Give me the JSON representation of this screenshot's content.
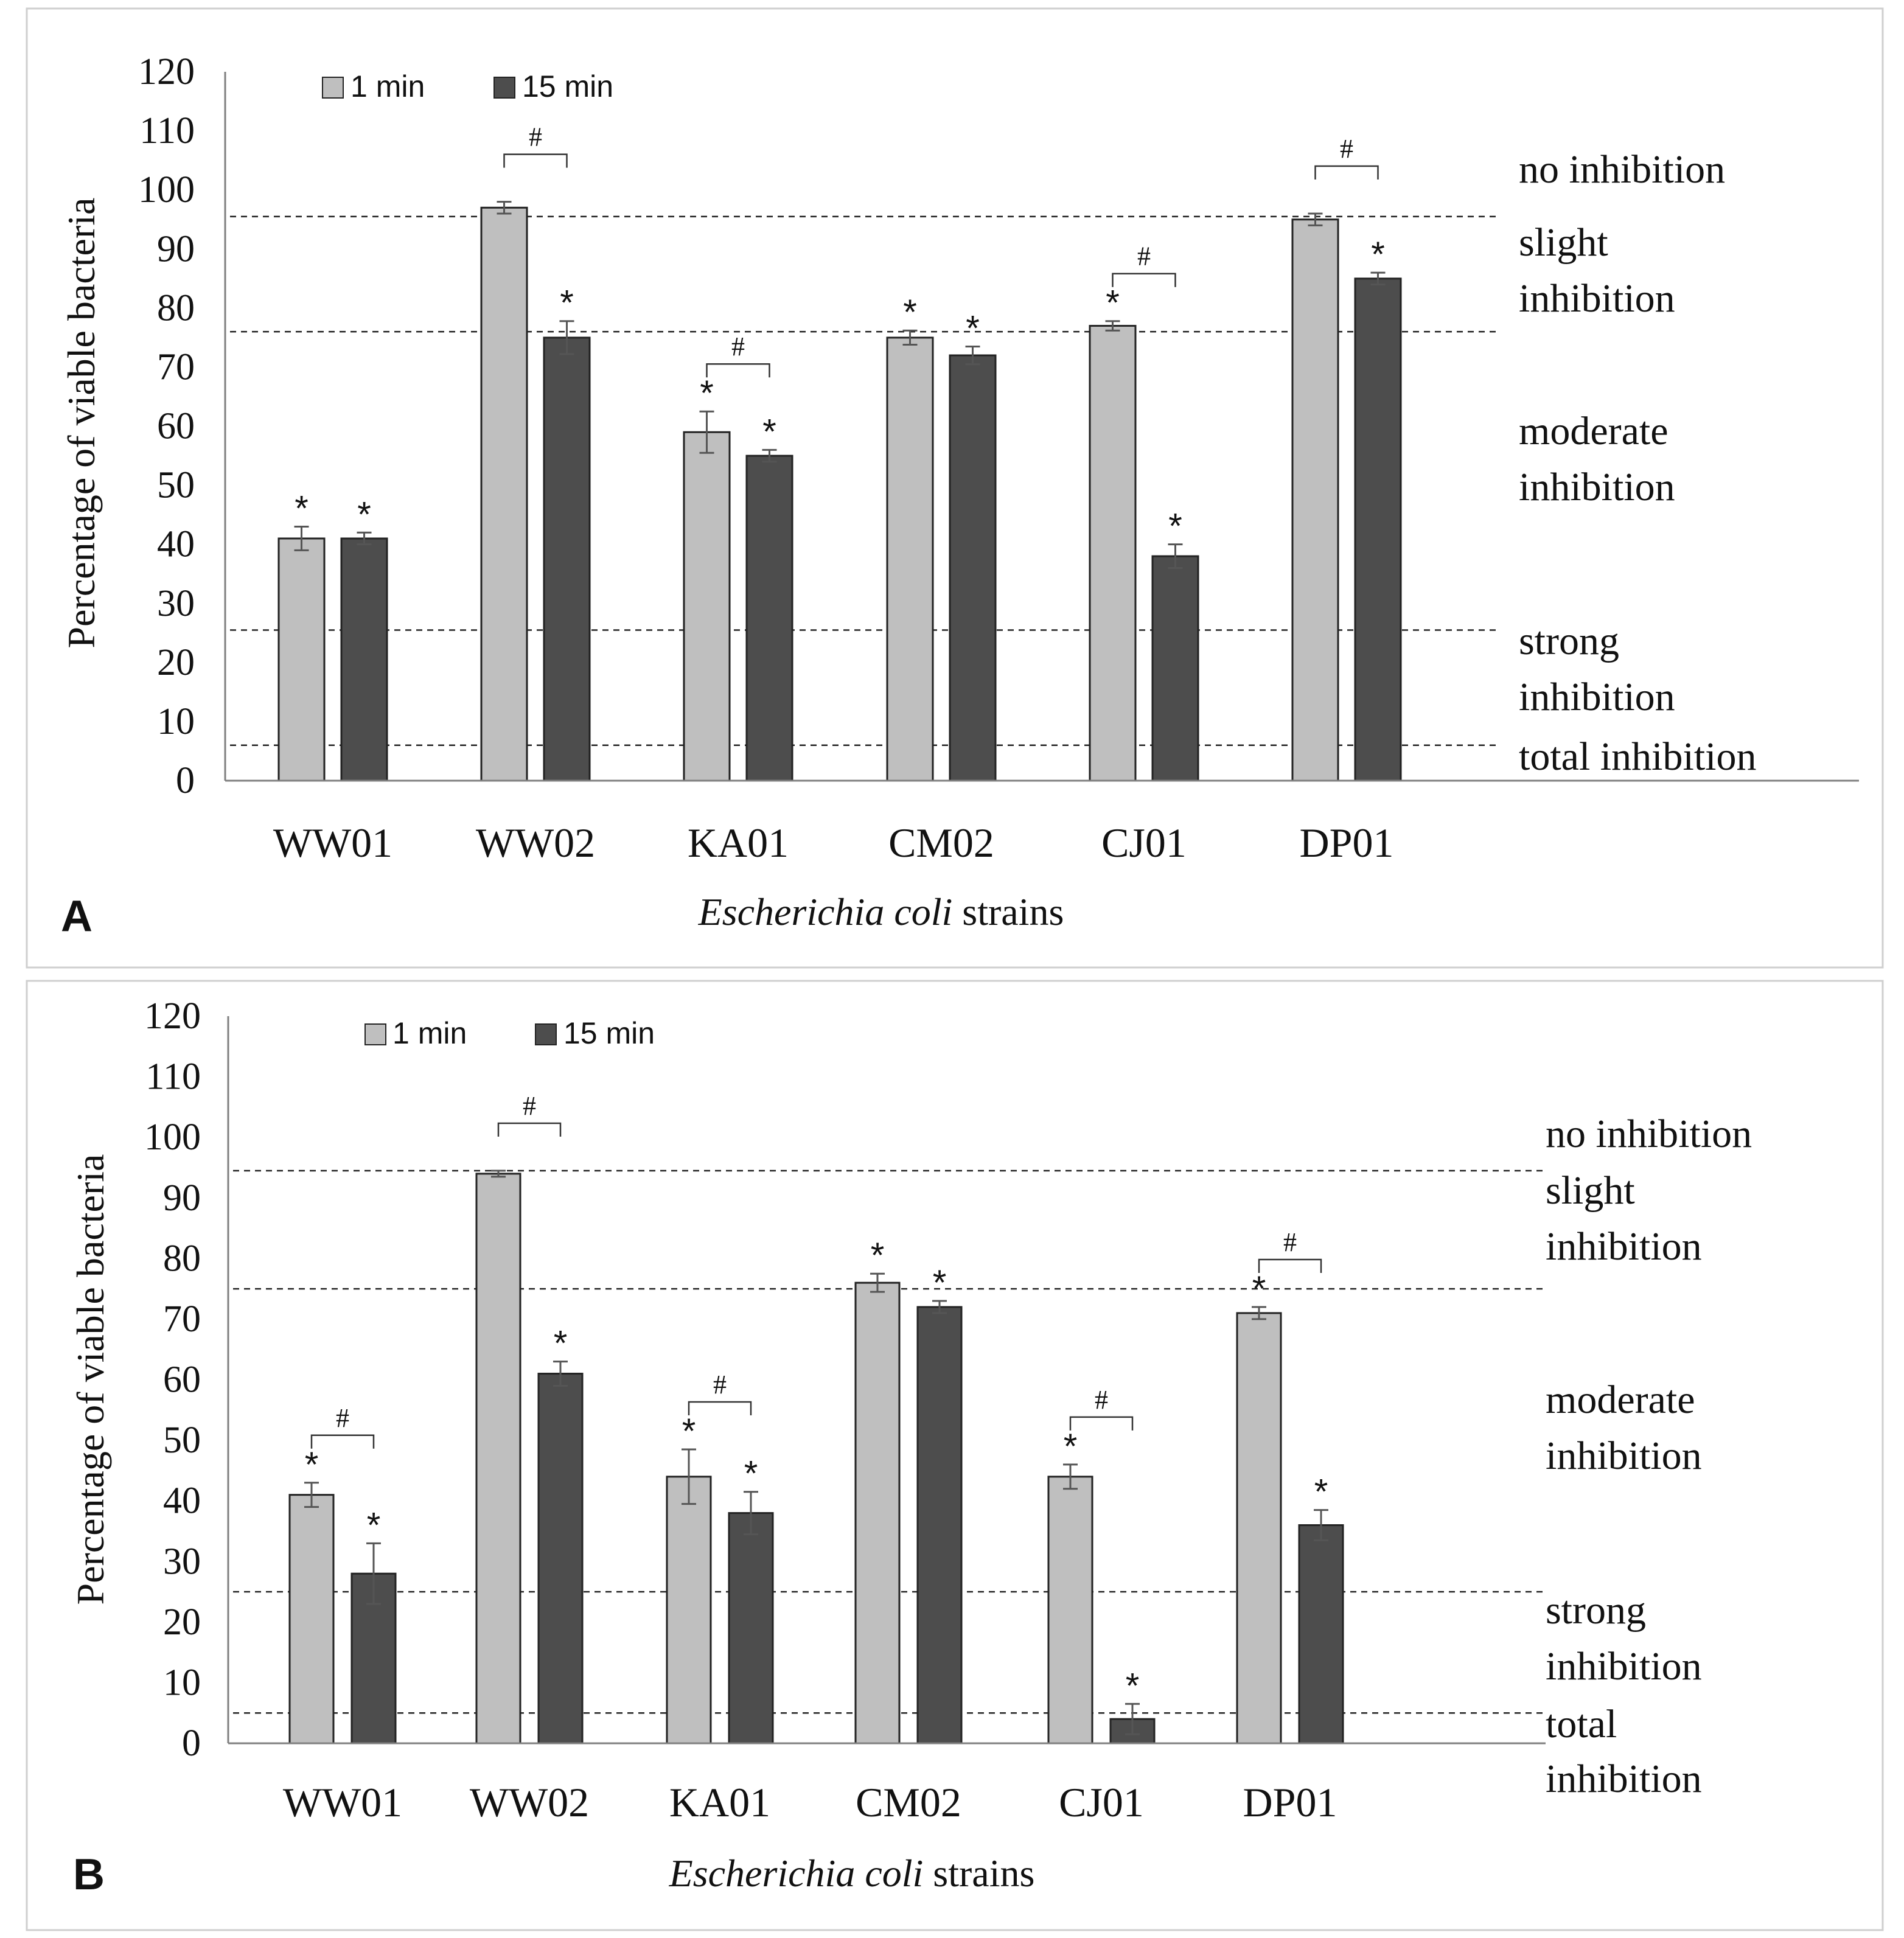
{
  "chart_data": [
    {
      "panel": "A",
      "type": "bar",
      "ylabel": "Percentage of viable bacteria",
      "xlabel_italic": "Escherichia coli",
      "xlabel_rest": " strains",
      "ylim": [
        0,
        120
      ],
      "yticks": [
        0,
        10,
        20,
        30,
        40,
        50,
        60,
        70,
        80,
        90,
        100,
        110,
        120
      ],
      "categories": [
        "WW01",
        "WW02",
        "KA01",
        "CM02",
        "CJ01",
        "DP01"
      ],
      "legend": [
        "1 min",
        "15 min"
      ],
      "series": [
        {
          "name": "1 min",
          "color": "#bfbfbf",
          "values": [
            41,
            97,
            59,
            75,
            77,
            95
          ],
          "errors": [
            2,
            1,
            3.5,
            1.2,
            0.8,
            1
          ],
          "star": [
            true,
            false,
            true,
            true,
            true,
            false
          ]
        },
        {
          "name": "15 min",
          "color": "#4d4d4d",
          "values": [
            41,
            75,
            55,
            72,
            38,
            85
          ],
          "errors": [
            1,
            2.8,
            1,
            1.5,
            2,
            1
          ],
          "star": [
            true,
            true,
            true,
            true,
            true,
            true
          ]
        }
      ],
      "hash_pairs": [
        1,
        2,
        4,
        5
      ],
      "thresholds": [
        95.5,
        76,
        25.5,
        6
      ],
      "bands": [
        {
          "lines": [
            "no inhibition"
          ]
        },
        {
          "lines": [
            "slight",
            "inhibition"
          ]
        },
        {
          "lines": [
            "moderate",
            "inhibition"
          ]
        },
        {
          "lines": [
            "strong",
            "inhibition"
          ]
        },
        {
          "lines": [
            "total inhibition"
          ]
        }
      ]
    },
    {
      "panel": "B",
      "type": "bar",
      "ylabel": "Percentage of viable bacteria",
      "xlabel_italic": "Escherichia coli",
      "xlabel_rest": " strains",
      "ylim": [
        0,
        120
      ],
      "yticks": [
        0,
        10,
        20,
        30,
        40,
        50,
        60,
        70,
        80,
        90,
        100,
        110,
        120
      ],
      "categories": [
        "WW01",
        "WW02",
        "KA01",
        "CM02",
        "CJ01",
        "DP01"
      ],
      "legend": [
        "1 min",
        "15 min"
      ],
      "series": [
        {
          "name": "1 min",
          "color": "#bfbfbf",
          "values": [
            41,
            94,
            44,
            76,
            44,
            71
          ],
          "errors": [
            2,
            0.5,
            4.5,
            1.5,
            2,
            1
          ],
          "star": [
            true,
            false,
            true,
            true,
            true,
            true
          ]
        },
        {
          "name": "15 min",
          "color": "#4d4d4d",
          "values": [
            28,
            61,
            38,
            72,
            4,
            36
          ],
          "errors": [
            5,
            2,
            3.5,
            1,
            2.5,
            2.5
          ],
          "star": [
            true,
            true,
            true,
            true,
            true,
            true
          ]
        }
      ],
      "hash_pairs": [
        0,
        1,
        2,
        4,
        5
      ],
      "thresholds": [
        94.5,
        75,
        25,
        5
      ],
      "bands": [
        {
          "lines": [
            "no inhibition"
          ]
        },
        {
          "lines": [
            "slight",
            "inhibition"
          ]
        },
        {
          "lines": [
            "moderate",
            "inhibition"
          ]
        },
        {
          "lines": [
            "strong",
            "inhibition"
          ]
        },
        {
          "lines": [
            "total",
            "inhibition"
          ]
        }
      ]
    }
  ]
}
